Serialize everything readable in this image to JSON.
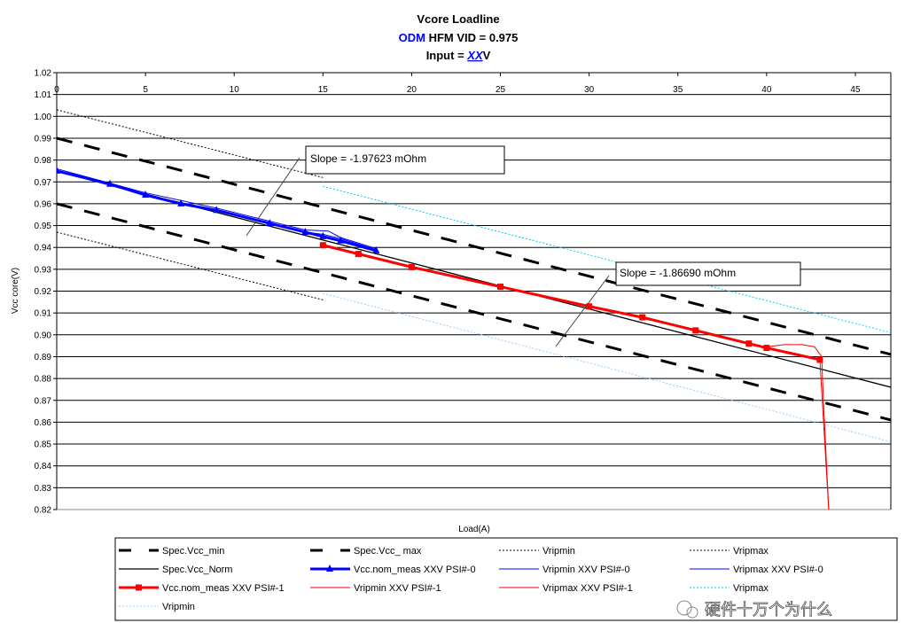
{
  "chart_data": {
    "type": "line",
    "title": {
      "line1": "Vcore Loadline",
      "line2_prefix": "ODM",
      "line2_rest": " HFM VID = 0.975",
      "line3_prefix": "Input = ",
      "line3_link": "XX",
      "line3_suffix": "V"
    },
    "xlabel": "Load(A)",
    "ylabel": "Vcc core(V)",
    "xlim": [
      0,
      47
    ],
    "ylim": [
      0.82,
      1.02
    ],
    "x_axis_position": "top",
    "x_ticks": [
      "0",
      "5",
      "10",
      "15",
      "20",
      "25",
      "30",
      "35",
      "40",
      "45"
    ],
    "y_ticks": [
      "0.82",
      "0.83",
      "0.84",
      "0.85",
      "0.86",
      "0.87",
      "0.88",
      "0.89",
      "0.90",
      "0.91",
      "0.92",
      "0.93",
      "0.94",
      "0.95",
      "0.96",
      "0.97",
      "0.98",
      "0.99",
      "1.00",
      "1.01",
      "1.02"
    ],
    "grid": "horizontal",
    "legend_position": "bottom",
    "colors": {
      "accent_blue": "#0000ff",
      "red": "#ff0000",
      "cyan": "#00ccff",
      "light_blue": "#99ccff"
    },
    "series": [
      {
        "name": "Spec.Vcc_min",
        "style": "long-dash-black",
        "x": [
          0,
          47
        ],
        "y": [
          0.96,
          0.861
        ]
      },
      {
        "name": "Spec.Vcc_ max",
        "style": "long-dash-black",
        "x": [
          0,
          47
        ],
        "y": [
          0.99,
          0.891
        ]
      },
      {
        "name": "Vripmin",
        "style": "dotted-black",
        "x": [
          0,
          15
        ],
        "y": [
          0.947,
          0.916
        ]
      },
      {
        "name": "Vripmax",
        "style": "dotted-black",
        "x": [
          0,
          15
        ],
        "y": [
          1.003,
          0.972
        ]
      },
      {
        "name": "Spec.Vcc_Norm",
        "style": "solid-black",
        "x": [
          0,
          47
        ],
        "y": [
          0.975,
          0.876
        ]
      },
      {
        "name": "Vcc.nom_meas XXV PSI#-0",
        "style": "blue-triangle",
        "x": [
          0,
          3,
          5,
          7,
          9,
          12,
          14,
          15,
          16,
          18
        ],
        "y": [
          0.975,
          0.969,
          0.964,
          0.96,
          0.957,
          0.951,
          0.947,
          0.945,
          0.943,
          0.9385
        ]
      },
      {
        "name": "Vripmin XXV PSI#-0",
        "style": "thin-blue",
        "x": [
          0,
          5,
          9,
          14,
          15,
          16,
          18
        ],
        "y": [
          0.975,
          0.964,
          0.957,
          0.947,
          0.946,
          0.944,
          0.939
        ]
      },
      {
        "name": "Vripmax XXV PSI#-0",
        "style": "thin-blue",
        "x": [
          0,
          5,
          9,
          14,
          15.3,
          16,
          18
        ],
        "y": [
          0.976,
          0.965,
          0.958,
          0.948,
          0.9475,
          0.9445,
          0.9395
        ]
      },
      {
        "name": "Vcc.nom_meas XXV PSI#-1",
        "style": "red-square",
        "x": [
          15,
          17,
          20,
          25,
          30,
          33,
          36,
          39,
          40,
          43
        ],
        "y": [
          0.941,
          0.937,
          0.931,
          0.922,
          0.913,
          0.908,
          0.902,
          0.896,
          0.894,
          0.8886
        ]
      },
      {
        "name": "Vripmin XXV PSI#-1",
        "style": "thin-red",
        "x": [
          15,
          20,
          25,
          30,
          36,
          40,
          43,
          43.5
        ],
        "y": [
          0.941,
          0.931,
          0.922,
          0.913,
          0.902,
          0.894,
          0.8886,
          0.82
        ]
      },
      {
        "name": "Vripmax XXV PSI#-1",
        "style": "thin-red",
        "x": [
          40,
          41,
          42,
          42.7,
          43.1,
          43.2,
          43.5
        ],
        "y": [
          0.8945,
          0.8955,
          0.8955,
          0.8945,
          0.89,
          0.87,
          0.82
        ]
      },
      {
        "name": "Vripmax",
        "style": "dotted-cyan",
        "x": [
          15,
          47
        ],
        "y": [
          0.968,
          0.901
        ]
      },
      {
        "name": "Vripmin",
        "style": "dotted-lightblue",
        "x": [
          15,
          47
        ],
        "y": [
          0.919,
          0.851
        ]
      }
    ],
    "annotations": [
      {
        "text": "Slope = -1.97623 mOhm",
        "points_to": [
          11,
          0.946
        ]
      },
      {
        "text": "Slope = -1.86690 mOhm",
        "points_to": [
          28,
          0.893
        ]
      }
    ]
  },
  "watermark": "硬件十万个为什么"
}
